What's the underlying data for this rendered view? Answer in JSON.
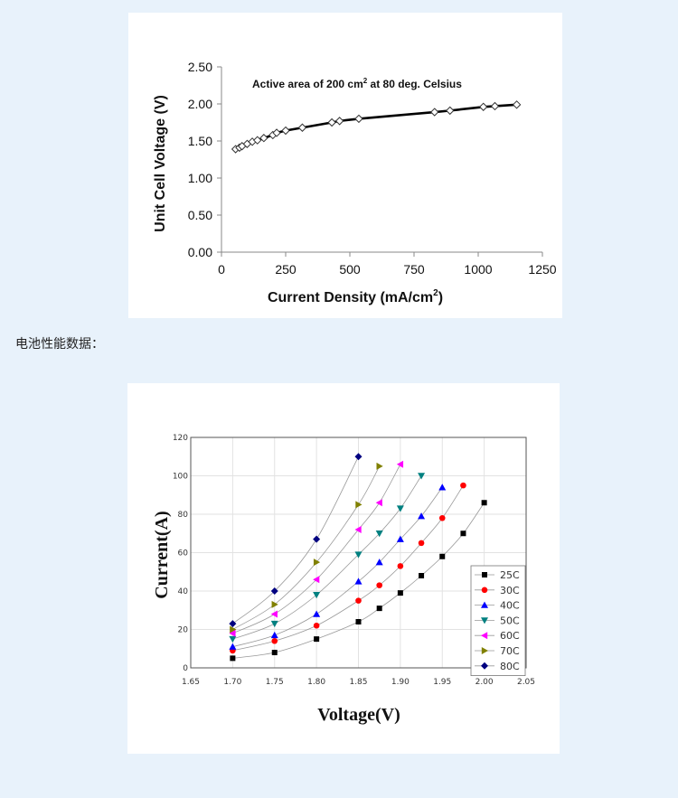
{
  "caption": "电池性能数据：",
  "chart_data": [
    {
      "type": "line",
      "annotation": {
        "main": "Active area of 200 cm",
        "sup": "2",
        "rest": " at 80 deg. Celsius"
      },
      "xlabel": {
        "main": "Current  Density  (mA/cm",
        "sup": "2",
        "rest": ")"
      },
      "ylabel": "Unit Cell Voltage  (V)",
      "xlim": [
        0,
        1250
      ],
      "ylim": [
        0,
        2.5
      ],
      "xticks": [
        0,
        250,
        500,
        750,
        1000,
        1250
      ],
      "yticks": [
        "0.00",
        "0.50",
        "1.00",
        "1.50",
        "2.00",
        "2.50"
      ],
      "grid": false,
      "marker": "diamond-open",
      "series": [
        {
          "x": [
            55,
            70,
            80,
            100,
            120,
            140,
            165,
            200,
            215,
            250,
            315,
            430,
            460,
            535,
            830,
            890,
            1020,
            1065,
            1150
          ],
          "y": [
            1.39,
            1.41,
            1.43,
            1.46,
            1.49,
            1.51,
            1.54,
            1.58,
            1.61,
            1.64,
            1.68,
            1.75,
            1.77,
            1.8,
            1.89,
            1.91,
            1.96,
            1.97,
            1.99
          ]
        }
      ]
    },
    {
      "type": "line",
      "xlabel": "Voltage(V)",
      "ylabel": "Current(A)",
      "xlim": [
        1.65,
        2.05
      ],
      "ylim": [
        0,
        120
      ],
      "xticks": [
        "1.65",
        "1.70",
        "1.75",
        "1.80",
        "1.85",
        "1.90",
        "1.95",
        "2.00",
        "2.05"
      ],
      "yticks": [
        "0",
        "20",
        "40",
        "60",
        "80",
        "100",
        "120"
      ],
      "grid": true,
      "legend": "right",
      "series": [
        {
          "name": "25C",
          "color": "#000000",
          "marker": "square",
          "x": [
            1.7,
            1.75,
            1.8,
            1.85,
            1.875,
            1.9,
            1.925,
            1.95,
            1.975,
            2.0
          ],
          "y": [
            5,
            8,
            15,
            24,
            31,
            39,
            48,
            58,
            70,
            86
          ]
        },
        {
          "name": "30C",
          "color": "#ff0000",
          "marker": "circle",
          "x": [
            1.7,
            1.75,
            1.8,
            1.85,
            1.875,
            1.9,
            1.925,
            1.95,
            1.975
          ],
          "y": [
            9,
            14,
            22,
            35,
            43,
            53,
            65,
            78,
            95
          ]
        },
        {
          "name": "40C",
          "color": "#0000ff",
          "marker": "triangle-up",
          "x": [
            1.7,
            1.75,
            1.8,
            1.85,
            1.875,
            1.9,
            1.925,
            1.95
          ],
          "y": [
            11,
            17,
            28,
            45,
            55,
            67,
            79,
            94
          ]
        },
        {
          "name": "50C",
          "color": "#008080",
          "marker": "triangle-down",
          "x": [
            1.7,
            1.75,
            1.8,
            1.85,
            1.875,
            1.9,
            1.925
          ],
          "y": [
            15,
            23,
            38,
            59,
            70,
            83,
            100
          ]
        },
        {
          "name": "60C",
          "color": "#ff00ff",
          "marker": "triangle-left",
          "x": [
            1.7,
            1.75,
            1.8,
            1.85,
            1.875,
            1.9
          ],
          "y": [
            18,
            28,
            46,
            72,
            86,
            106
          ]
        },
        {
          "name": "70C",
          "color": "#808000",
          "marker": "triangle-right",
          "x": [
            1.7,
            1.75,
            1.8,
            1.85,
            1.875
          ],
          "y": [
            20,
            33,
            55,
            85,
            105
          ]
        },
        {
          "name": "80C",
          "color": "#000080",
          "marker": "diamond",
          "x": [
            1.7,
            1.75,
            1.8,
            1.85
          ],
          "y": [
            23,
            40,
            67,
            110
          ]
        }
      ]
    }
  ]
}
